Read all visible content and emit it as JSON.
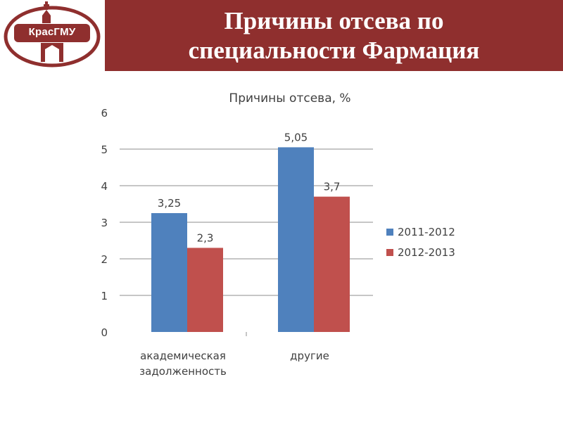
{
  "header": {
    "title_line1": "Причины отсева по",
    "title_line2": "специальности Фармация",
    "background_color": "#8f2f2e"
  },
  "logo": {
    "text": "КрасГМУ",
    "ring_color": "#8f2f2e",
    "icon": "university-building-logo-icon"
  },
  "chart_data": {
    "type": "bar",
    "title": "Причины отсева, %",
    "categories": [
      [
        "академическая",
        "задолженность"
      ],
      [
        "другие"
      ]
    ],
    "series": [
      {
        "name": "2011-2012",
        "values": [
          3.25,
          5.05
        ],
        "labels": [
          "3,25",
          "5,05"
        ],
        "color": "#4f81bd"
      },
      {
        "name": "2012-2013",
        "values": [
          2.3,
          3.7
        ],
        "labels": [
          "2,3",
          "3,7"
        ],
        "color": "#c0504d"
      }
    ],
    "ylim": [
      0,
      6
    ],
    "yticks": [
      0,
      1,
      2,
      3,
      4,
      5,
      6
    ],
    "xlabel": "",
    "ylabel": "",
    "grid": true,
    "legend": "right"
  }
}
